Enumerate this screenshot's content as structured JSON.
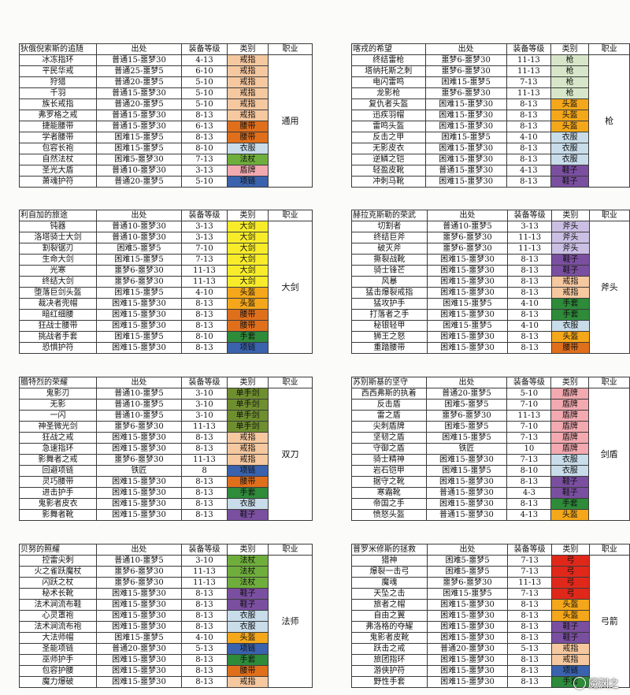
{
  "colors": {
    "戒指": "#f6c8a0",
    "腰带": "#e06f1c",
    "衣服": "#c8dcea",
    "法杖": "#6fae3c",
    "盾牌": "#f2a9b0",
    "项链": "#3a62ad",
    "枪": "#d7e6c8",
    "头盔": "#f4a71a",
    "鞋子": "#7a4fa0",
    "大剑": "#f8ec2a",
    "斧头": "#cbbfe4",
    "手套": "#2e8b3a",
    "单手剑": "#6f8f2f",
    "弓": "#e0281a"
  },
  "header": {
    "source": "出处",
    "level": "装备等级",
    "type": "类别",
    "job": "职业"
  },
  "sets": [
    {
      "title": "狄俄倪索斯的追随",
      "job": "通用",
      "rows": [
        [
          "冰冻指环",
          "普通15-噩梦30",
          "4-13",
          "戒指"
        ],
        [
          "平民华戒",
          "普通25-噩梦5",
          "6-10",
          "戒指"
        ],
        [
          "狩猎",
          "普通20-噩梦5",
          "5-10",
          "戒指"
        ],
        [
          "千羽",
          "普通15-噩梦30",
          "5-10",
          "戒指"
        ],
        [
          "族长戒指",
          "普通20-噩梦5",
          "5-10",
          "戒指"
        ],
        [
          "弗罗格之戒",
          "普通15-噩梦30",
          "8-13",
          "戒指"
        ],
        [
          "捷能腰带",
          "普通15-噩梦30",
          "6-13",
          "腰带"
        ],
        [
          "学者腰带",
          "困难15-噩梦5",
          "8-13",
          "腰带"
        ],
        [
          "包容长袍",
          "困难15-噩梦5",
          "8-10",
          "衣服"
        ],
        [
          "自然法杖",
          "困难5-噩梦30",
          "7-13",
          "法杖"
        ],
        [
          "圣光大盾",
          "普通10-噩梦30",
          "3-13",
          "盾牌"
        ],
        [
          "萧魂护符",
          "普通20-噩梦5",
          "5-10",
          "项链"
        ]
      ]
    },
    {
      "title": "喀戎的希望",
      "job": "枪",
      "rows": [
        [
          "终结雷枪",
          "噩梦6-噩梦30",
          "11-13",
          "枪"
        ],
        [
          "塔纳托斯之刺",
          "噩梦6-噩梦30",
          "11-13",
          "枪"
        ],
        [
          "电闪雷鸣",
          "困难15-噩梦5",
          "7-13",
          "枪"
        ],
        [
          "龙影枪",
          "噩梦6-噩梦30",
          "11-13",
          "枪"
        ],
        [
          "复仇者头盔",
          "困难15-噩梦30",
          "8-13",
          "头盔"
        ],
        [
          "迅疾羽帽",
          "困难15-噩梦30",
          "8-13",
          "头盔"
        ],
        [
          "雷鸣头盔",
          "困难15-噩梦30",
          "8-13",
          "头盔"
        ],
        [
          "反击之甲",
          "困难15-噩梦5",
          "4-10",
          "衣服"
        ],
        [
          "无影皮衣",
          "困难15-噩梦30",
          "8-13",
          "衣服"
        ],
        [
          "逆鳞之铠",
          "困难15-噩梦30",
          "8-13",
          "衣服"
        ],
        [
          "轻盈皮靴",
          "普通15-噩梦30",
          "4-13",
          "鞋子"
        ],
        [
          "冲刺马靴",
          "困难15-噩梦30",
          "8-13",
          "鞋子"
        ]
      ]
    },
    {
      "title": "利自加的旅途",
      "job": "大剑",
      "rows": [
        [
          "钝器",
          "普通10-噩梦30",
          "3-13",
          "大剑"
        ],
        [
          "洛塔骑士大剑",
          "普通10-噩梦30",
          "3-13",
          "大剑"
        ],
        [
          "割裂锯刃",
          "困难5-噩梦5",
          "7-10",
          "大剑"
        ],
        [
          "生命大剑",
          "困难15-噩梦5",
          "7-13",
          "大剑"
        ],
        [
          "光寒",
          "噩梦6-噩梦30",
          "11-13",
          "大剑"
        ],
        [
          "终结大剑",
          "噩梦6-噩梦30",
          "11-13",
          "大剑"
        ],
        [
          "堕落巨剑头盔",
          "困难15-噩梦5",
          "4-10",
          "头盔"
        ],
        [
          "裁决者兜帽",
          "困难15-噩梦30",
          "8-13",
          "头盔"
        ],
        [
          "暗红细腰",
          "困难15-噩梦30",
          "8-13",
          "腰带"
        ],
        [
          "狂战士腰带",
          "困难15-噩梦30",
          "8-13",
          "腰带"
        ],
        [
          "挑战者手套",
          "困难15-噩梦5",
          "8-10",
          "手套"
        ],
        [
          "恐惧护符",
          "困难15-噩梦30",
          "8-13",
          "项链"
        ]
      ]
    },
    {
      "title": "赫拉克斯勒的荣武",
      "job": "斧头",
      "rows": [
        [
          "切割者",
          "普通10-噩梦5",
          "3-13",
          "斧头"
        ],
        [
          "终结巨斧",
          "噩梦6-噩梦30",
          "11-13",
          "斧头"
        ],
        [
          "破灭斧",
          "噩梦6-噩梦30",
          "11-13",
          "斧头"
        ],
        [
          "撕裂战靴",
          "困难15-噩梦30",
          "8-13",
          "鞋子"
        ],
        [
          "骑士锋芒",
          "困难15-噩梦30",
          "8-13",
          "鞋子"
        ],
        [
          "风暴",
          "困难15-噩梦30",
          "8-13",
          "戒指"
        ],
        [
          "猛击爆裂戒指",
          "困难15-噩梦30",
          "8-13",
          "戒指"
        ],
        [
          "猛攻护手",
          "困难15-噩梦5",
          "4-10",
          "手套"
        ],
        [
          "打落者之手",
          "困难15-噩梦30",
          "8-13",
          "手套"
        ],
        [
          "秘银轻甲",
          "困难15-噩梦5",
          "4-10",
          "衣服"
        ],
        [
          "狮王之怒",
          "困难15-噩梦30",
          "8-13",
          "头盔"
        ],
        [
          "重踏腰带",
          "困难15-噩梦30",
          "8-13",
          "腰带"
        ]
      ]
    },
    {
      "title": "腊特烈的荣耀",
      "job": "双刀",
      "rows": [
        [
          "鬼影刃",
          "普通10-噩梦5",
          "3-10",
          "单手剑"
        ],
        [
          "无影",
          "普通10-噩梦5",
          "3-10",
          "单手剑"
        ],
        [
          "一闪",
          "普通10-噩梦5",
          "3-10",
          "单手剑"
        ],
        [
          "神圣微光剑",
          "噩梦6-噩梦30",
          "11-13",
          "单手剑"
        ],
        [
          "狂战之戒",
          "困难15-噩梦30",
          "8-13",
          "戒指"
        ],
        [
          "急速指环",
          "困难15-噩梦30",
          "8-13",
          "戒指"
        ],
        [
          "影舞者之戒",
          "噩梦6-噩梦30",
          "11-13",
          "戒指"
        ],
        [
          "回避项链",
          "铁匠",
          "8",
          "项链"
        ],
        [
          "灵巧腰带",
          "困难15-噩梦30",
          "8-13",
          "腰带"
        ],
        [
          "进击护手",
          "困难15-噩梦30",
          "8-13",
          "手套"
        ],
        [
          "鬼影者皮衣",
          "困难15-噩梦30",
          "8-13",
          "衣服"
        ],
        [
          "影舞者靴",
          "困难15-噩梦30",
          "8-13",
          "鞋子"
        ]
      ]
    },
    {
      "title": "苏别斯基的坚守",
      "job": "剑盾",
      "rows": [
        [
          "西西弗斯的执着",
          "普通20-噩梦5",
          "5-10",
          "盾牌"
        ],
        [
          "反击盾",
          "困难5-噩梦5",
          "7-10",
          "盾牌"
        ],
        [
          "雷之盾",
          "噩梦6-噩梦30",
          "11-13",
          "盾牌"
        ],
        [
          "尖刺盾牌",
          "困难5-噩梦5",
          "7-10",
          "盾牌"
        ],
        [
          "坚韧之盾",
          "困难15-噩梦5",
          "7-13",
          "盾牌"
        ],
        [
          "守御之盾",
          "铁匠",
          "10",
          "盾牌"
        ],
        [
          "骑士精神",
          "困难15-噩梦30",
          "7-13",
          "衣服"
        ],
        [
          "岩石铠甲",
          "困难15-噩梦5",
          "8-10",
          "衣服"
        ],
        [
          "据守之靴",
          "困难15-噩梦30",
          "8-13",
          "鞋子"
        ],
        [
          "寒霜靴",
          "普通15-噩梦30",
          "4-3",
          "鞋子"
        ],
        [
          "帝国之手",
          "困难15-噩梦30",
          "8-13",
          "手套"
        ],
        [
          "愤怒头盔",
          "普通15-噩梦30",
          "4-13",
          "头盔"
        ]
      ]
    },
    {
      "title": "贝努的照耀",
      "job": "法师",
      "rows": [
        [
          "控雷尖刺",
          "普通10-噩梦5",
          "3-10",
          "法杖"
        ],
        [
          "火之雀跃魔杖",
          "噩梦6-噩梦30",
          "11-13",
          "法杖"
        ],
        [
          "闪跃之杖",
          "噩梦6-噩梦30",
          "11-13",
          "法杖"
        ],
        [
          "秘术长靴",
          "困难15-噩梦30",
          "8-13",
          "鞋子"
        ],
        [
          "法术涧流布鞋",
          "困难15-噩梦30",
          "8-13",
          "鞋子"
        ],
        [
          "心灵罩袍",
          "困难15-噩梦30",
          "8-13",
          "衣服"
        ],
        [
          "法术涧流布袍",
          "困难15-噩梦30",
          "8-13",
          "衣服"
        ],
        [
          "大法师帽",
          "困难15-噩梦5",
          "4-10",
          "头盔"
        ],
        [
          "圣能项链",
          "普通20-噩梦30",
          "5-13",
          "项链"
        ],
        [
          "巫师护手",
          "困难15-噩梦30",
          "8-13",
          "手套"
        ],
        [
          "包容护腰",
          "困难15-噩梦30",
          "8-13",
          "腰带"
        ],
        [
          "魔力爆破",
          "困难15-噩梦30",
          "8-13",
          "戒指"
        ]
      ]
    },
    {
      "title": "普罗米修斯的拯救",
      "job": "弓箭",
      "rows": [
        [
          "猎神",
          "困难5-噩梦5",
          "7-13",
          "弓"
        ],
        [
          "爆裂一击弓",
          "困难5-噩梦5",
          "7-13",
          "弓"
        ],
        [
          "魔魂",
          "噩梦6-噩梦30",
          "11-13",
          "弓"
        ],
        [
          "天坠之击",
          "困难15-噩梦5",
          "7-13",
          "弓"
        ],
        [
          "旅者之帽",
          "困难15-噩梦30",
          "8-13",
          "头盔"
        ],
        [
          "自由之翼",
          "困难15-噩梦30",
          "8-13",
          "头盔"
        ],
        [
          "弗洛格的夺耀",
          "困难15-噩梦30",
          "8-13",
          "鞋子"
        ],
        [
          "鬼影者皮靴",
          "困难15-噩梦30",
          "8-13",
          "鞋子"
        ],
        [
          "跃击之戒",
          "普通20-噩梦30",
          "5-13",
          "戒指"
        ],
        [
          "旅团指环",
          "困难15-噩梦30",
          "8-13",
          "戒指"
        ],
        [
          "游侠护符",
          "困难15-噩梦30",
          "8-13",
          "项链"
        ],
        [
          "野性手套",
          "困难15-噩梦30",
          "8-13",
          "手套"
        ]
      ]
    }
  ],
  "watermark": "魇渊之"
}
